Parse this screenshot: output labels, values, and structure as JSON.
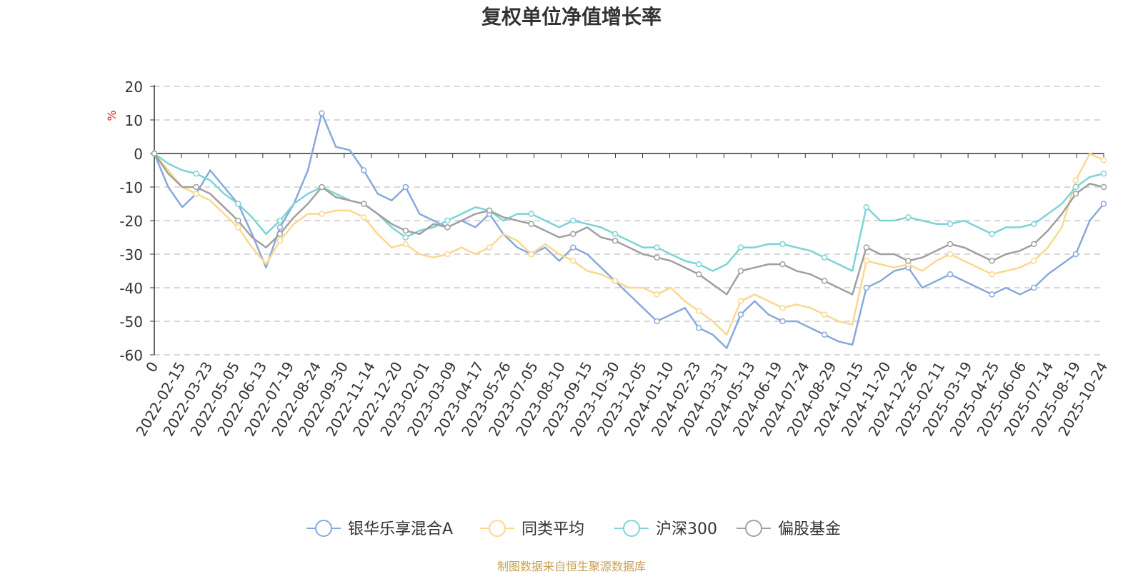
{
  "chart_data": {
    "type": "line",
    "title": "复权单位净值增长率",
    "ylabel": "%",
    "xlabel": "",
    "ylim": [
      -60,
      20
    ],
    "yticks": [
      20,
      10,
      0,
      -10,
      -20,
      -30,
      -40,
      -50,
      -60
    ],
    "x_tick_labels": [
      "0",
      "2022-02-15",
      "2022-03-23",
      "2022-05-05",
      "2022-06-13",
      "2022-07-19",
      "2022-08-24",
      "2022-09-30",
      "2022-11-14",
      "2022-12-20",
      "2023-02-01",
      "2023-03-09",
      "2023-04-17",
      "2023-05-26",
      "2023-07-05",
      "2023-08-10",
      "2023-09-15",
      "2023-10-30",
      "2023-12-05",
      "2024-01-10",
      "2024-02-23",
      "2024-03-31",
      "2024-05-13",
      "2024-06-19",
      "2024-07-24",
      "2024-08-29",
      "2024-10-15",
      "2024-11-20",
      "2024-12-26",
      "2025-02-11",
      "2025-03-19",
      "2025-04-25",
      "2025-06-06",
      "2025-07-14",
      "2025-08-19",
      "2025-10-24"
    ],
    "legend_position": "bottom",
    "grid": true,
    "series": [
      {
        "name": "银华乐享混合A",
        "color": "#88a9db",
        "values": [
          0,
          -10,
          -16,
          -12,
          -5,
          -10,
          -15,
          -24,
          -34,
          -22,
          -15,
          -5,
          12,
          2,
          1,
          -5,
          -12,
          -14,
          -10,
          -18,
          -20,
          -22,
          -20,
          -22,
          -18,
          -24,
          -28,
          -30,
          -28,
          -32,
          -28,
          -30,
          -34,
          -38,
          -42,
          -46,
          -50,
          -48,
          -46,
          -52,
          -54,
          -58,
          -48,
          -44,
          -48,
          -50,
          -50,
          -52,
          -54,
          -56,
          -57,
          -40,
          -38,
          -35,
          -34,
          -40,
          -38,
          -36,
          -38,
          -40,
          -42,
          -40,
          -42,
          -40,
          -36,
          -33,
          -30,
          -20,
          -15
        ]
      },
      {
        "name": "同类平均",
        "color": "#fad88e",
        "values": [
          0,
          -5,
          -10,
          -12,
          -14,
          -18,
          -22,
          -28,
          -33,
          -26,
          -21,
          -18,
          -18,
          -17,
          -17,
          -19,
          -24,
          -28,
          -27,
          -30,
          -31,
          -30,
          -28,
          -30,
          -28,
          -24,
          -26,
          -30,
          -27,
          -30,
          -32,
          -35,
          -36,
          -38,
          -40,
          -40,
          -42,
          -40,
          -44,
          -47,
          -50,
          -54,
          -44,
          -42,
          -44,
          -46,
          -45,
          -46,
          -48,
          -50,
          -51,
          -32,
          -33,
          -34,
          -33,
          -35,
          -32,
          -30,
          -32,
          -34,
          -36,
          -35,
          -34,
          -32,
          -28,
          -22,
          -8,
          0,
          -2
        ]
      },
      {
        "name": "沪深300",
        "color": "#7dd3d8",
        "values": [
          0,
          -3,
          -5,
          -6,
          -8,
          -12,
          -15,
          -19,
          -24,
          -20,
          -15,
          -12,
          -10,
          -12,
          -14,
          -15,
          -18,
          -22,
          -25,
          -23,
          -22,
          -20,
          -18,
          -16,
          -17,
          -20,
          -18,
          -18,
          -20,
          -22,
          -20,
          -21,
          -22,
          -24,
          -26,
          -28,
          -28,
          -30,
          -32,
          -33,
          -35,
          -33,
          -28,
          -28,
          -27,
          -27,
          -28,
          -29,
          -31,
          -33,
          -35,
          -16,
          -20,
          -20,
          -19,
          -20,
          -21,
          -21,
          -20,
          -22,
          -24,
          -22,
          -22,
          -21,
          -18,
          -15,
          -10,
          -7,
          -6
        ]
      },
      {
        "name": "偏股基金",
        "color": "#a0a0a0",
        "values": [
          0,
          -6,
          -10,
          -10,
          -12,
          -16,
          -20,
          -25,
          -28,
          -24,
          -19,
          -15,
          -10,
          -13,
          -14,
          -15,
          -18,
          -21,
          -23,
          -24,
          -21,
          -22,
          -20,
          -18,
          -17,
          -19,
          -20,
          -21,
          -23,
          -25,
          -24,
          -22,
          -25,
          -26,
          -28,
          -30,
          -31,
          -32,
          -34,
          -36,
          -39,
          -42,
          -35,
          -34,
          -33,
          -33,
          -35,
          -36,
          -38,
          -40,
          -42,
          -28,
          -30,
          -30,
          -32,
          -31,
          -29,
          -27,
          -28,
          -30,
          -32,
          -30,
          -29,
          -27,
          -23,
          -18,
          -12,
          -9,
          -10
        ]
      }
    ],
    "source_note": "制图数据来自恒生聚源数据库"
  }
}
